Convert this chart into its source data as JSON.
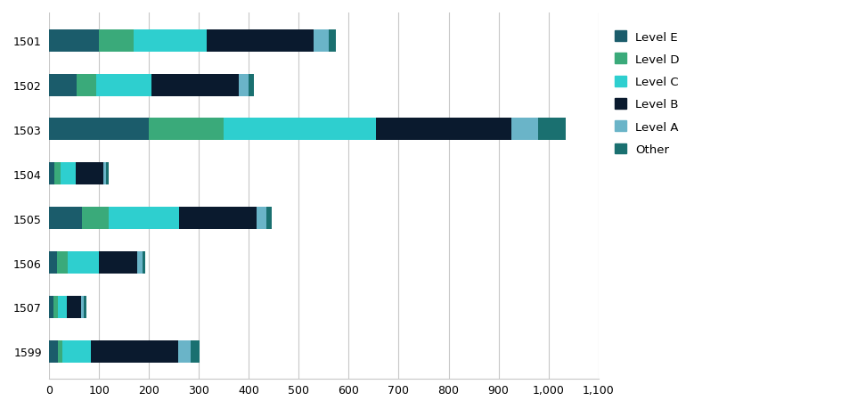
{
  "categories": [
    "1501",
    "1502",
    "1503",
    "1504",
    "1505",
    "1506",
    "1507",
    "1599"
  ],
  "levels": [
    "Level E",
    "Level D",
    "Level C",
    "Level B",
    "Level A",
    "Other"
  ],
  "colors": [
    "#1b5c6b",
    "#3aaa7a",
    "#2ecfcf",
    "#0a1a2e",
    "#6ab4c8",
    "#1a7070"
  ],
  "data": {
    "Level E": [
      100,
      55,
      200,
      10,
      65,
      15,
      8,
      18
    ],
    "Level D": [
      70,
      40,
      150,
      12,
      55,
      22,
      10,
      8
    ],
    "Level C": [
      145,
      110,
      305,
      32,
      140,
      62,
      18,
      58
    ],
    "Level B": [
      215,
      175,
      270,
      55,
      155,
      78,
      28,
      175
    ],
    "Level A": [
      30,
      20,
      55,
      5,
      20,
      10,
      6,
      25
    ],
    "Other": [
      15,
      10,
      55,
      5,
      10,
      5,
      5,
      18
    ]
  },
  "xlim": [
    0,
    1100
  ],
  "xticks": [
    0,
    100,
    200,
    300,
    400,
    500,
    600,
    700,
    800,
    900,
    1000,
    1100
  ],
  "xtick_labels": [
    "0",
    "100",
    "200",
    "300",
    "400",
    "500",
    "600",
    "700",
    "800",
    "900",
    "1,000",
    "1,100"
  ],
  "background_color": "#ffffff",
  "grid_color": "#c8c8c8",
  "bar_height": 0.5,
  "legend_fontsize": 9.5,
  "tick_fontsize": 9
}
